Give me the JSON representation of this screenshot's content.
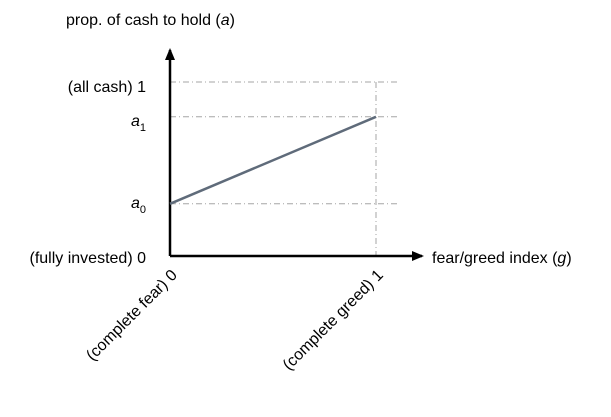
{
  "chart_data": {
    "type": "line",
    "title": "",
    "ylabel": {
      "text": "prop. of cash to hold (",
      "var": "a",
      "close": ")"
    },
    "xlabel": {
      "text": "fear/greed index (",
      "var": "g",
      "close": ")"
    },
    "xlim": [
      0,
      1
    ],
    "ylim": [
      0,
      1
    ],
    "y_tick_labels": {
      "bottom": "(fully invested) 0",
      "top": "(all cash) 1",
      "a0": {
        "base": "a",
        "sub": "0"
      },
      "a1": {
        "base": "a",
        "sub": "1"
      }
    },
    "x_tick_labels": {
      "left": "(complete fear) 0",
      "right": "(complete greed) 1"
    },
    "series": [
      {
        "x": [
          0,
          1
        ],
        "y": [
          0.3,
          0.8
        ],
        "color": "#5f6b7a"
      }
    ],
    "guide_color": "#a6a6a6",
    "axis_color": "#000000"
  }
}
